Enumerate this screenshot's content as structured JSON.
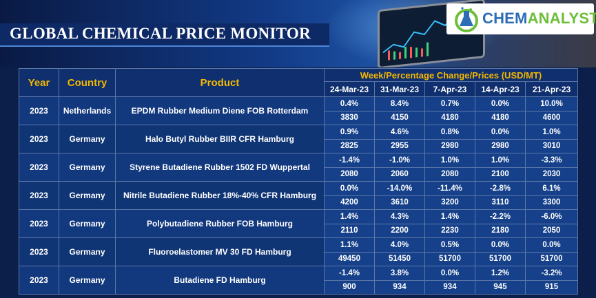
{
  "header": {
    "title": "GLOBAL CHEMICAL PRICE MONITOR",
    "logo_prefix": "CHEM",
    "logo_suffix": "ANALYST"
  },
  "table": {
    "col_year": "Year",
    "col_country": "Country",
    "col_product": "Product",
    "group_header": "Week/Percentage Change/Prices (USD/MT)",
    "dates": [
      "24-Mar-23",
      "31-Mar-23",
      "7-Apr-23",
      "14-Apr-23",
      "21-Apr-23"
    ],
    "rows": [
      {
        "year": "2023",
        "country": "Netherlands",
        "product": "EPDM Rubber Medium Diene FOB Rotterdam",
        "pct": [
          "0.4%",
          "8.4%",
          "0.7%",
          "0.0%",
          "10.0%"
        ],
        "price": [
          "3830",
          "4150",
          "4180",
          "4180",
          "4600"
        ]
      },
      {
        "year": "2023",
        "country": "Germany",
        "product": "Halo Butyl Rubber BIIR CFR Hamburg",
        "pct": [
          "0.9%",
          "4.6%",
          "0.8%",
          "0.0%",
          "1.0%"
        ],
        "price": [
          "2825",
          "2955",
          "2980",
          "2980",
          "3010"
        ]
      },
      {
        "year": "2023",
        "country": "Germany",
        "product": "Styrene Butadiene Rubber 1502 FD Wuppertal",
        "pct": [
          "-1.4%",
          "-1.0%",
          "1.0%",
          "1.0%",
          "-3.3%"
        ],
        "price": [
          "2080",
          "2060",
          "2080",
          "2100",
          "2030"
        ]
      },
      {
        "year": "2023",
        "country": "Germany",
        "product": "Nitrile Butadiene Rubber 18%-40% CFR Hamburg",
        "pct": [
          "0.0%",
          "-14.0%",
          "-11.4%",
          "-2.8%",
          "6.1%"
        ],
        "price": [
          "4200",
          "3610",
          "3200",
          "3110",
          "3300"
        ]
      },
      {
        "year": "2023",
        "country": "Germany",
        "product": "Polybutadiene Rubber FOB Hamburg",
        "pct": [
          "1.4%",
          "4.3%",
          "1.4%",
          "-2.2%",
          "-6.0%"
        ],
        "price": [
          "2110",
          "2200",
          "2230",
          "2180",
          "2050"
        ]
      },
      {
        "year": "2023",
        "country": "Germany",
        "product": "Fluoroelastomer MV 30 FD Hamburg",
        "pct": [
          "1.1%",
          "4.0%",
          "0.5%",
          "0.0%",
          "0.0%"
        ],
        "price": [
          "49450",
          "51450",
          "51700",
          "51700",
          "51700"
        ]
      },
      {
        "year": "2023",
        "country": "Germany",
        "product": "Butadiene FD Hamburg",
        "pct": [
          "-1.4%",
          "3.8%",
          "0.0%",
          "1.2%",
          "-3.2%"
        ],
        "price": [
          "900",
          "934",
          "934",
          "945",
          "915"
        ]
      }
    ]
  }
}
